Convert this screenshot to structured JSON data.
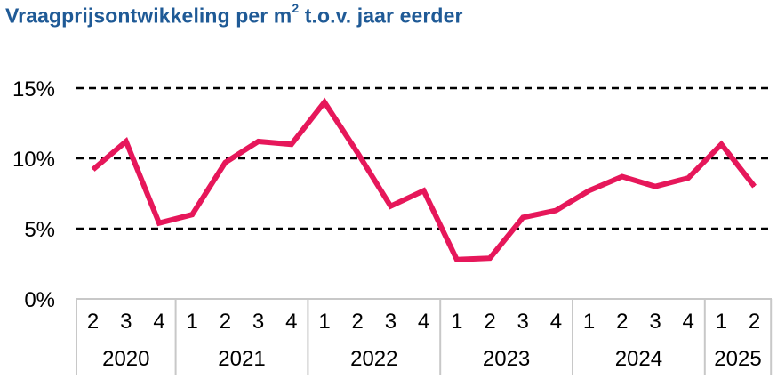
{
  "title": {
    "main": "Vraagprijsontwikkeling per m",
    "superscript": "2",
    "rest": " t.o.v. jaar eerder"
  },
  "colors": {
    "line": "#e6175a",
    "title": "#1f5a96",
    "grid": "#000000",
    "axis": "#c8c8c8"
  },
  "chart_data": {
    "type": "line",
    "title": "Vraagprijsontwikkeling per m2 t.o.v. jaar eerder",
    "xlabel": "",
    "ylabel": "",
    "ylim": [
      0,
      15
    ],
    "yticks": [
      "0%",
      "5%",
      "10%",
      "15%"
    ],
    "ytick_values": [
      0,
      5,
      10,
      15
    ],
    "grid": "horizontal dashed at 5%, 10%, 15%",
    "groups": [
      {
        "year": "2020",
        "quarters": [
          "2",
          "3",
          "4"
        ]
      },
      {
        "year": "2021",
        "quarters": [
          "1",
          "2",
          "3",
          "4"
        ]
      },
      {
        "year": "2022",
        "quarters": [
          "1",
          "2",
          "3",
          "4"
        ]
      },
      {
        "year": "2023",
        "quarters": [
          "1",
          "2",
          "3",
          "4"
        ]
      },
      {
        "year": "2024",
        "quarters": [
          "1",
          "2",
          "3",
          "4"
        ]
      },
      {
        "year": "2025",
        "quarters": [
          "1",
          "2"
        ]
      }
    ],
    "series": [
      {
        "values": [
          9.2,
          11.2,
          5.4,
          6.0,
          9.7,
          11.2,
          11.0,
          14.0,
          10.4,
          6.6,
          7.7,
          2.8,
          2.9,
          5.8,
          6.3,
          7.7,
          8.7,
          8.0,
          8.6,
          11.0,
          8.0
        ]
      }
    ]
  }
}
